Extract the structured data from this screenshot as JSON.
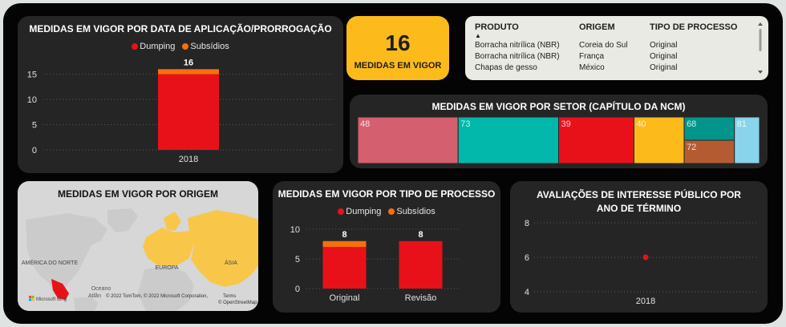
{
  "colors": {
    "dumping": "#e8111a",
    "subsidios": "#f7700b",
    "kpi_bg": "#fcba1b",
    "card_bg": "#252525"
  },
  "date_chart": {
    "title": "MEDIDAS EM VIGOR POR DATA DE APLICAÇÃO/PRORROGAÇÃO",
    "legend": [
      "Dumping",
      "Subsídios"
    ]
  },
  "kpi": {
    "value": "16",
    "label": "MEDIDAS EM VIGOR"
  },
  "table": {
    "headers": [
      "PRODUTO",
      "ORIGEM",
      "TIPO DE PROCESSO"
    ],
    "sort_indicator": "▲",
    "rows": [
      [
        "Borracha nitrílica (NBR)",
        "Coreia do Sul",
        "Original"
      ],
      [
        "Borracha nitrílica (NBR)",
        "França",
        "Original"
      ],
      [
        "Chapas de gesso",
        "México",
        "Original"
      ]
    ]
  },
  "sector": {
    "title": "MEDIDAS EM VIGOR POR SETOR (CAPÍTULO DA NCM)",
    "labels": [
      "48",
      "73",
      "39",
      "40",
      "68",
      "72",
      "81"
    ]
  },
  "map": {
    "title": "MEDIDAS EM VIGOR POR ORIGEM",
    "labels": {
      "north_america": "AMÉRICA DO NORTE",
      "europe": "EUROPA",
      "asia": "ÁSIA",
      "ocean_1": "Oceano",
      "ocean_2": "Atlân",
      "bing": "Microsoft Bing",
      "copyright": "© 2022 TomTom, © 2022 Microsoft Corporation,",
      "terms": "Terms",
      "osm": "© OpenStreetMap"
    }
  },
  "process_chart": {
    "title": "MEDIDAS EM VIGOR POR TIPO DE PROCESSO",
    "legend": [
      "Dumping",
      "Subsídios"
    ]
  },
  "interest_chart": {
    "title": "AVALIAÇÕES DE INTERESSE PÚBLICO POR ANO DE TÉRMINO"
  },
  "chart_data": [
    {
      "type": "bar",
      "title": "MEDIDAS EM VIGOR POR DATA DE APLICAÇÃO/PRORROGAÇÃO",
      "categories": [
        "2018"
      ],
      "series": [
        {
          "name": "Dumping",
          "values": [
            15
          ]
        },
        {
          "name": "Subsídios",
          "values": [
            1
          ]
        }
      ],
      "totals": [
        16
      ],
      "stacked": true,
      "yticks": [
        0,
        5,
        10,
        15
      ],
      "ylim": [
        0,
        17
      ],
      "grid": true,
      "legend": "top-center"
    },
    {
      "type": "bar",
      "title": "MEDIDAS EM VIGOR POR TIPO DE PROCESSO",
      "categories": [
        "Original",
        "Revisão"
      ],
      "series": [
        {
          "name": "Dumping",
          "values": [
            7,
            8
          ]
        },
        {
          "name": "Subsídios",
          "values": [
            1,
            0
          ]
        }
      ],
      "totals": [
        8,
        8
      ],
      "stacked": true,
      "yticks": [
        0,
        5,
        10
      ],
      "ylim": [
        0,
        10
      ],
      "grid": true,
      "legend": "top-center"
    },
    {
      "type": "scatter",
      "title": "AVALIAÇÕES DE INTERESSE PÚBLICO POR ANO DE TÉRMINO",
      "categories": [
        "2018"
      ],
      "values": [
        6
      ],
      "yticks": [
        4,
        6,
        8
      ],
      "ylim": [
        4,
        8
      ],
      "grid": true
    },
    {
      "type": "treemap",
      "title": "MEDIDAS EM VIGOR POR SETOR (CAPÍTULO DA NCM)",
      "categories": [
        "48",
        "73",
        "39",
        "40",
        "68",
        "72",
        "81"
      ],
      "values": [
        4,
        4,
        3,
        2,
        1,
        1,
        1
      ],
      "colors": [
        "#d45f6e",
        "#01b8aa",
        "#e8111a",
        "#fcba1b",
        "#01958c",
        "#b55b32",
        "#8ad4eb"
      ]
    }
  ]
}
